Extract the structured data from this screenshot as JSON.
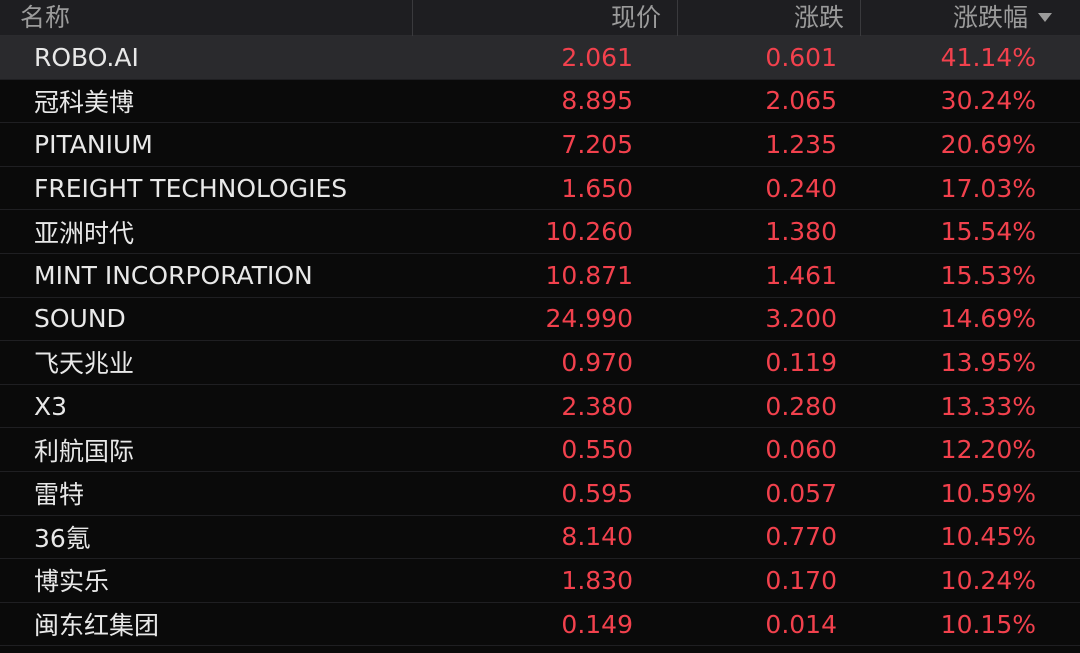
{
  "header": {
    "name": "名称",
    "price": "现价",
    "change": "涨跌",
    "change_pct": "涨跌幅",
    "sort_icon": "sort-desc-icon"
  },
  "colors": {
    "background": "#0a0a0a",
    "header_bg": "#1e1e21",
    "selected_row_bg": "#2a2a2d",
    "up_red": "#f2414d",
    "name_text": "#e8e8e8",
    "header_text": "#9b9b9b"
  },
  "rows": [
    {
      "name": "ROBO.AI",
      "price": "2.061",
      "change": "0.601",
      "pct": "41.14%"
    },
    {
      "name": "冠科美博",
      "price": "8.895",
      "change": "2.065",
      "pct": "30.24%"
    },
    {
      "name": "PITANIUM",
      "price": "7.205",
      "change": "1.235",
      "pct": "20.69%"
    },
    {
      "name": "FREIGHT TECHNOLOGIES",
      "price": "1.650",
      "change": "0.240",
      "pct": "17.03%"
    },
    {
      "name": "亚洲时代",
      "price": "10.260",
      "change": "1.380",
      "pct": "15.54%"
    },
    {
      "name": "MINT INCORPORATION",
      "price": "10.871",
      "change": "1.461",
      "pct": "15.53%"
    },
    {
      "name": "SOUND",
      "price": "24.990",
      "change": "3.200",
      "pct": "14.69%"
    },
    {
      "name": "飞天兆业",
      "price": "0.970",
      "change": "0.119",
      "pct": "13.95%"
    },
    {
      "name": "X3",
      "price": "2.380",
      "change": "0.280",
      "pct": "13.33%"
    },
    {
      "name": "利航国际",
      "price": "0.550",
      "change": "0.060",
      "pct": "12.20%"
    },
    {
      "name": "雷特",
      "price": "0.595",
      "change": "0.057",
      "pct": "10.59%"
    },
    {
      "name": "36氪",
      "price": "8.140",
      "change": "0.770",
      "pct": "10.45%"
    },
    {
      "name": "博实乐",
      "price": "1.830",
      "change": "0.170",
      "pct": "10.24%"
    },
    {
      "name": "闽东红集团",
      "price": "0.149",
      "change": "0.014",
      "pct": "10.15%"
    }
  ]
}
